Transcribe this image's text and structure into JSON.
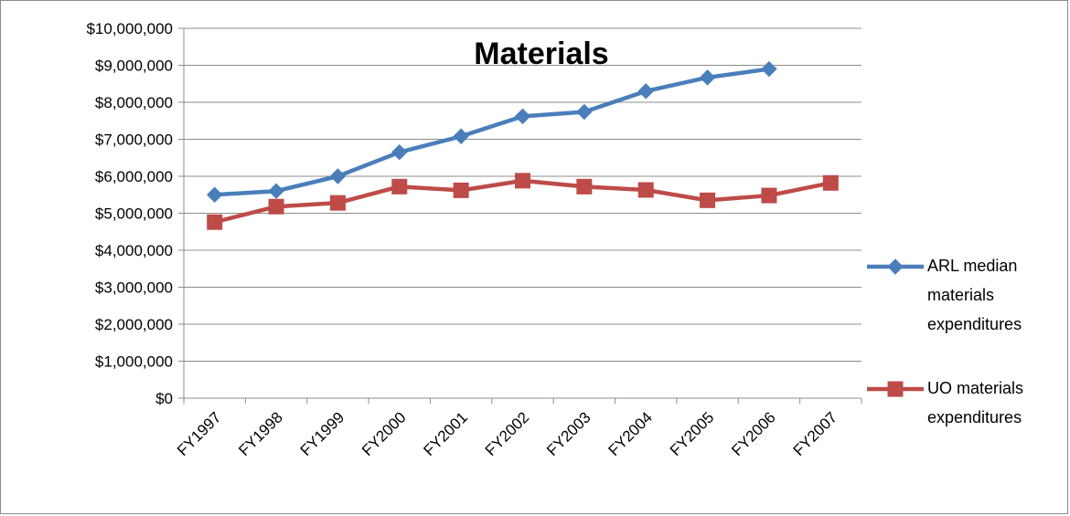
{
  "chart_data": {
    "type": "line",
    "title": "Materials",
    "xlabel": "",
    "ylabel": "",
    "ylim": [
      0,
      10000000
    ],
    "y_tick_step": 1000000,
    "y_tick_labels": [
      "$0",
      "$1,000,000",
      "$2,000,000",
      "$3,000,000",
      "$4,000,000",
      "$5,000,000",
      "$6,000,000",
      "$7,000,000",
      "$8,000,000",
      "$9,000,000",
      "$10,000,000"
    ],
    "categories": [
      "FY1997",
      "FY1998",
      "FY1999",
      "FY2000",
      "FY2001",
      "FY2002",
      "FY2003",
      "FY2004",
      "FY2005",
      "FY2006",
      "FY2007"
    ],
    "grid": true,
    "legend_position": "right",
    "series": [
      {
        "name": "ARL median materials expenditures",
        "legend_lines": [
          "ARL median",
          "materials",
          "expenditures"
        ],
        "color": "#4a7ebb",
        "marker": "diamond",
        "values": [
          5500000,
          5600000,
          6000000,
          6650000,
          7080000,
          7620000,
          7740000,
          8300000,
          8670000,
          8900000,
          null
        ]
      },
      {
        "name": "UO materials expenditures",
        "legend_lines": [
          "UO materials",
          "expenditures"
        ],
        "color": "#be4b48",
        "marker": "square",
        "values": [
          4760000,
          5180000,
          5280000,
          5720000,
          5620000,
          5880000,
          5720000,
          5630000,
          5350000,
          5480000,
          5820000
        ]
      }
    ]
  }
}
